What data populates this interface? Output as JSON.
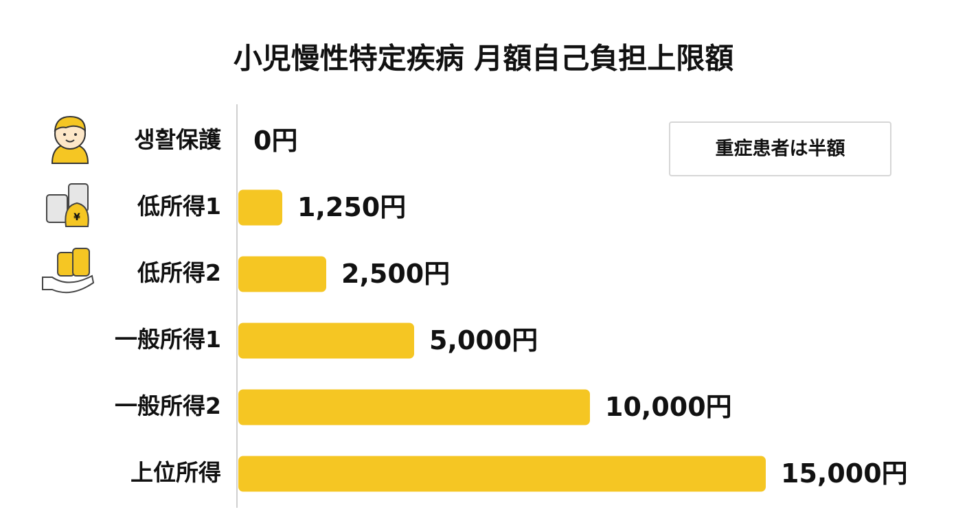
{
  "chart_data": {
    "type": "bar",
    "orientation": "horizontal",
    "title": "小児慢性特定疾病 月額自己負担上限額",
    "categories": [
      "생활保護",
      "低所得1",
      "低所得2",
      "一般所得1",
      "一般所得2",
      "上位所得"
    ],
    "values": [
      0,
      1250,
      2500,
      5000,
      10000,
      15000
    ],
    "value_labels": [
      "0円",
      "1,250円",
      "2,500円",
      "5,000円",
      "10,000円",
      "15,000円"
    ],
    "color": "#f5c623",
    "annotation": "重症患者は半額"
  }
}
